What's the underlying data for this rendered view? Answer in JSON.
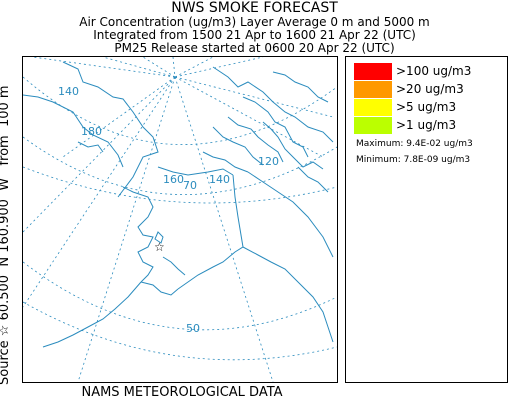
{
  "header": {
    "title": "NWS SMOKE FORECAST",
    "line1": "Air Concentration (ug/m3) Layer Average    0 m and  5000 m",
    "line2": "Integrated from 1500 21 Apr to 1600 21 Apr 22 (UTC)",
    "line3": "PM25 Release started at 0600 20 Apr 22 (UTC)"
  },
  "source_label": "Source ☆ 60.500  N 160.900  W   from  100 m",
  "footer": "NAMS METEOROLOGICAL DATA",
  "map": {
    "longitude_labels": [
      "140",
      "180",
      "160",
      "140",
      "120"
    ],
    "latitude_labels": [
      "70",
      "50"
    ],
    "colors": {
      "coastline": "#2b8cbe",
      "grid": "#2b8cbe"
    }
  },
  "legend": {
    "items": [
      {
        "label": ">100 ug/m3",
        "color": "#ff0000"
      },
      {
        "label": ">20 ug/m3",
        "color": "#ff9900"
      },
      {
        "label": ">5 ug/m3",
        "color": "#ffff00"
      },
      {
        "label": ">1 ug/m3",
        "color": "#bbff00"
      }
    ],
    "maximum": "Maximum: 9.4E-02 ug/m3",
    "minimum": "Minimum: 7.8E-09 ug/m3"
  }
}
